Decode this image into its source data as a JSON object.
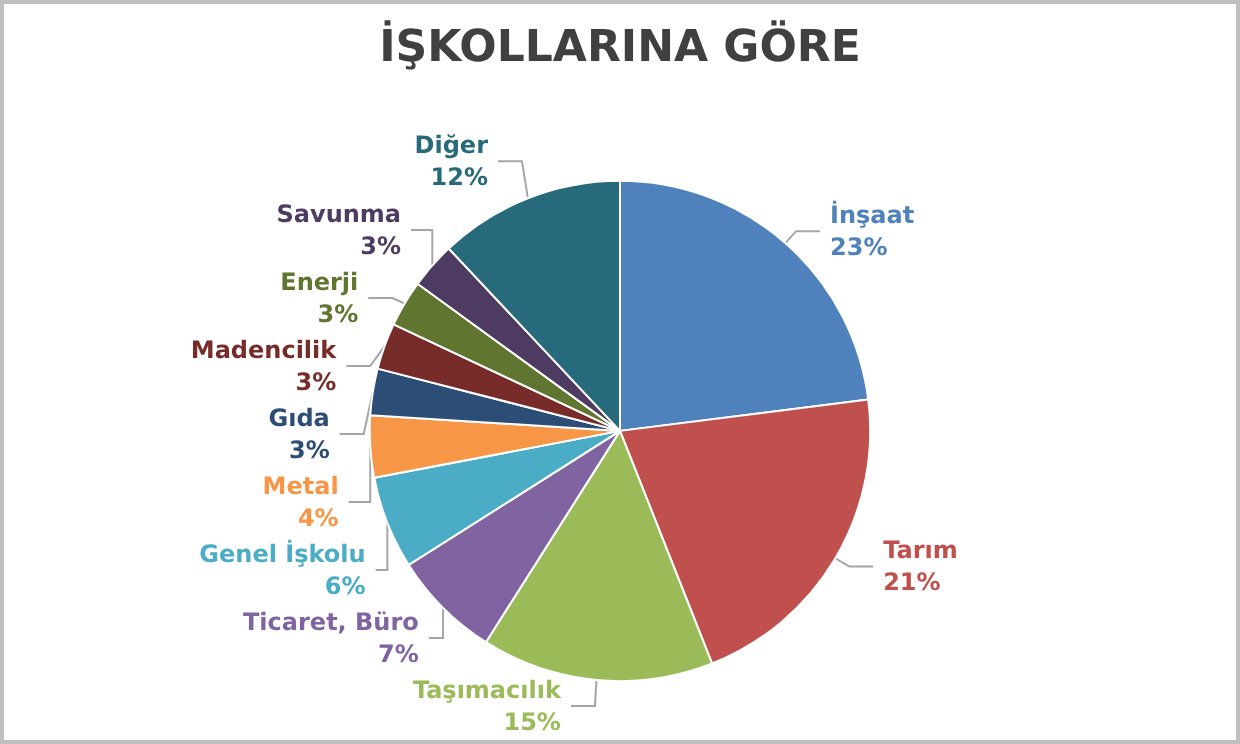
{
  "chart_data": {
    "type": "pie",
    "title": "İŞKOLLARINA GÖRE",
    "categories": [
      "İnşaat",
      "Tarım",
      "Taşımacılık",
      "Ticaret, Büro",
      "Genel İşkolu",
      "Metal",
      "Gıda",
      "Madencilik",
      "Enerji",
      "Savunma",
      "Diğer"
    ],
    "values": [
      23,
      21,
      15,
      7,
      6,
      4,
      3,
      3,
      3,
      3,
      12
    ],
    "value_labels": [
      "23%",
      "21%",
      "15%",
      "7%",
      "6%",
      "4%",
      "3%",
      "3%",
      "3%",
      "3%",
      "12%"
    ],
    "colors": [
      "#4f81bd",
      "#c0504d",
      "#9bbb59",
      "#8064a2",
      "#4bacc6",
      "#f79646",
      "#2c4d75",
      "#772c2a",
      "#5f7530",
      "#4d3b62",
      "#276a7c"
    ],
    "legend": false
  }
}
